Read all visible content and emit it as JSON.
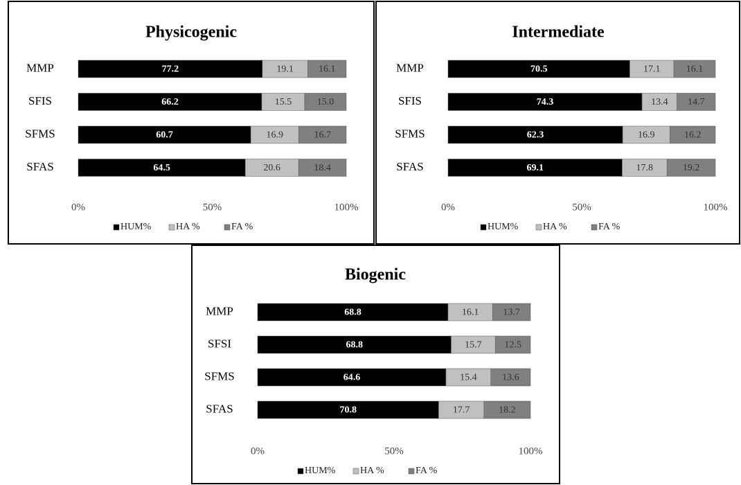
{
  "chart_data": [
    {
      "type": "bar",
      "stacked": "percent",
      "orientation": "horizontal",
      "title": "Physicogenic",
      "categories": [
        "MMP",
        "SFIS",
        "SFMS",
        "SFAS"
      ],
      "series": [
        {
          "name": "HUM%",
          "color": "#000000",
          "values": [
            77.2,
            66.2,
            60.7,
            64.5
          ]
        },
        {
          "name": "HA %",
          "color": "#c0c0c0",
          "values": [
            19.1,
            15.5,
            16.9,
            20.6
          ]
        },
        {
          "name": "FA %",
          "color": "#808080",
          "values": [
            16.1,
            15.0,
            16.7,
            18.4
          ],
          "value_labels": [
            "16.1",
            "15.0",
            "16.7",
            "18.4"
          ]
        }
      ],
      "xlim": [
        0,
        100
      ],
      "xticks": [
        {
          "value": 0,
          "label": "0%"
        },
        {
          "value": 50,
          "label": "50%"
        },
        {
          "value": 100,
          "label": "100%"
        }
      ],
      "legend": "bottom"
    },
    {
      "type": "bar",
      "stacked": "percent",
      "orientation": "horizontal",
      "title": "Intermediate",
      "categories": [
        "MMP",
        "SFIS",
        "SFMS",
        "SFAS"
      ],
      "series": [
        {
          "name": "HUM%",
          "color": "#000000",
          "values": [
            70.5,
            74.3,
            62.3,
            69.1
          ]
        },
        {
          "name": "HA %",
          "color": "#c0c0c0",
          "values": [
            17.1,
            13.4,
            16.9,
            17.8
          ]
        },
        {
          "name": "FA %",
          "color": "#808080",
          "values": [
            16.1,
            14.7,
            16.2,
            19.2
          ]
        }
      ],
      "xlim": [
        0,
        100
      ],
      "xticks": [
        {
          "value": 0,
          "label": "0%"
        },
        {
          "value": 50,
          "label": "50%"
        },
        {
          "value": 100,
          "label": "100%"
        }
      ],
      "legend": "bottom"
    },
    {
      "type": "bar",
      "stacked": "percent",
      "orientation": "horizontal",
      "title": "Biogenic",
      "categories": [
        "MMP",
        "SFSI",
        "SFMS",
        "SFAS"
      ],
      "series": [
        {
          "name": "HUM%",
          "color": "#000000",
          "values": [
            68.8,
            68.8,
            64.6,
            70.8
          ]
        },
        {
          "name": "HA %",
          "color": "#c0c0c0",
          "values": [
            16.1,
            15.7,
            15.4,
            17.7
          ]
        },
        {
          "name": "FA %",
          "color": "#808080",
          "values": [
            13.7,
            12.5,
            13.6,
            18.2
          ]
        }
      ],
      "xlim": [
        0,
        100
      ],
      "xticks": [
        {
          "value": 0,
          "label": "0%"
        },
        {
          "value": 50,
          "label": "50%"
        },
        {
          "value": 100,
          "label": "100%"
        }
      ],
      "legend": "bottom"
    }
  ]
}
